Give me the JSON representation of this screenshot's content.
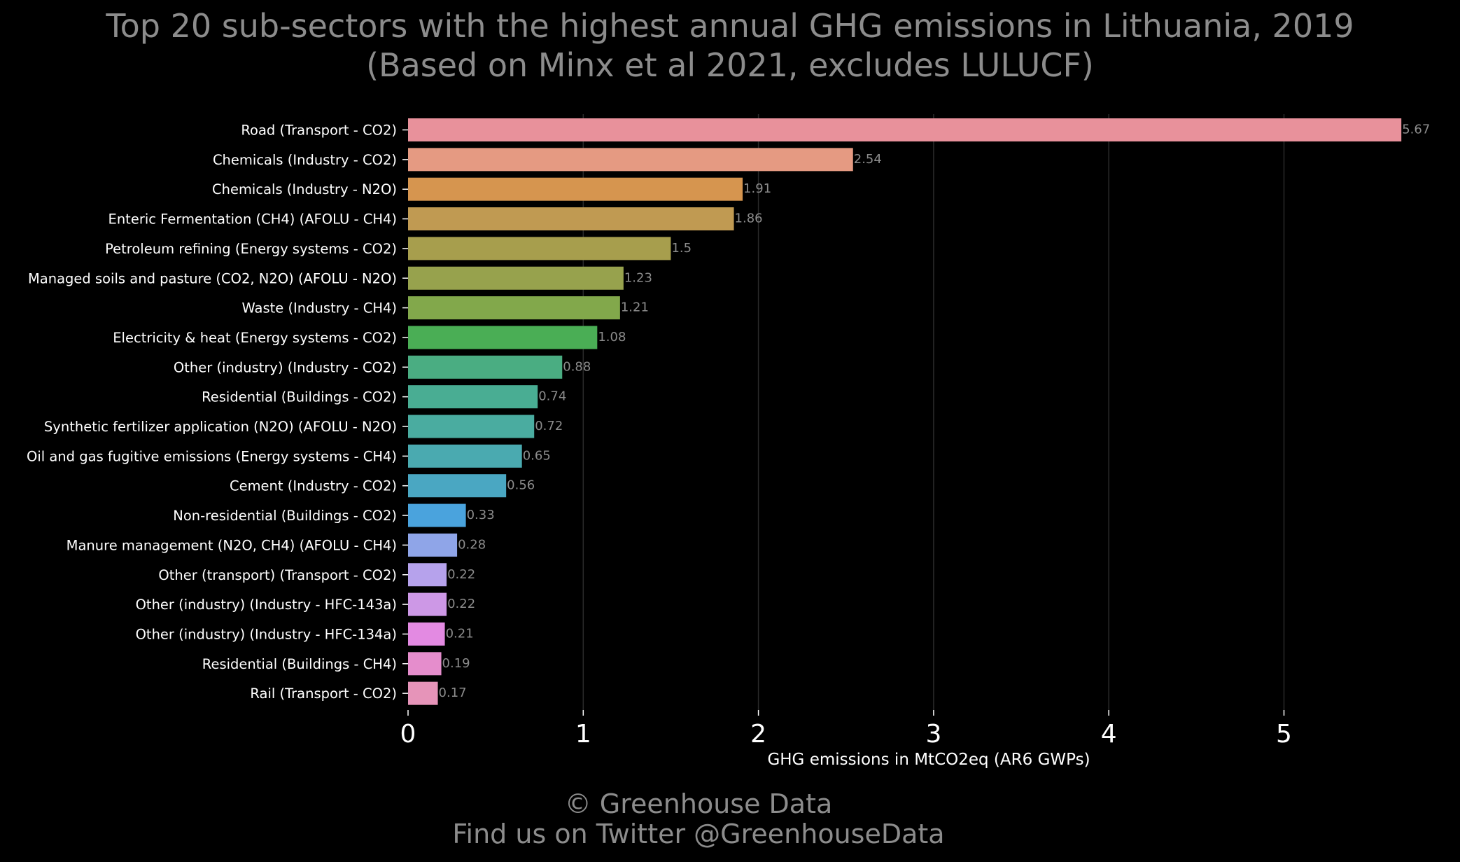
{
  "title_line1": "Top 20 sub-sectors with the highest annual GHG emissions in Lithuania, 2019",
  "title_line2": "(Based on Minx et al 2021, excludes LULUCF)",
  "footer_line1": "© Greenhouse Data",
  "footer_line2": "Find us on Twitter @GreenhouseData",
  "chart_data": {
    "type": "bar",
    "orientation": "horizontal",
    "title": "Top 20 sub-sectors with the highest annual GHG emissions in Lithuania, 2019 (Based on Minx et al 2021, excludes LULUCF)",
    "xlabel": "GHG emissions in MtCO2eq (AR6 GWPs)",
    "ylabel": "",
    "xlim": [
      0,
      5.67
    ],
    "xticks": [
      0,
      1,
      2,
      3,
      4,
      5
    ],
    "grid": "vertical",
    "categories": [
      "Road (Transport - CO2)",
      "Chemicals (Industry - CO2)",
      "Chemicals (Industry - N2O)",
      "Enteric Fermentation (CH4) (AFOLU - CH4)",
      "Petroleum refining (Energy systems - CO2)",
      "Managed soils and pasture (CO2, N2O) (AFOLU - N2O)",
      "Waste (Industry - CH4)",
      "Electricity & heat (Energy systems - CO2)",
      "Other (industry) (Industry - CO2)",
      "Residential (Buildings - CO2)",
      "Synthetic fertilizer application (N2O) (AFOLU - N2O)",
      "Oil and gas fugitive emissions (Energy systems - CH4)",
      "Cement (Industry - CO2)",
      "Non-residential (Buildings - CO2)",
      "Manure management (N2O, CH4) (AFOLU - CH4)",
      "Other (transport) (Transport - CO2)",
      "Other (industry) (Industry - HFC-143a)",
      "Other (industry) (Industry - HFC-134a)",
      "Residential (Buildings - CH4)",
      "Rail  (Transport - CO2)"
    ],
    "values": [
      5.67,
      2.54,
      1.91,
      1.86,
      1.5,
      1.23,
      1.21,
      1.08,
      0.88,
      0.74,
      0.72,
      0.65,
      0.56,
      0.33,
      0.28,
      0.22,
      0.22,
      0.21,
      0.19,
      0.17
    ],
    "value_labels": [
      "5.67",
      "2.54",
      "1.91",
      "1.86",
      "1.5",
      "1.23",
      "1.21",
      "1.08",
      "0.88",
      "0.74",
      "0.72",
      "0.65",
      "0.56",
      "0.33",
      "0.28",
      "0.22",
      "0.22",
      "0.21",
      "0.19",
      "0.17"
    ],
    "colors": [
      "#e8919b",
      "#e59a82",
      "#d6954f",
      "#c09a52",
      "#a79e4d",
      "#97a24d",
      "#82a84b",
      "#4aae55",
      "#4aad82",
      "#49ad93",
      "#4aaca0",
      "#4aaab0",
      "#4aa7c2",
      "#4aa3dd",
      "#8fa5e8",
      "#b6a2ec",
      "#cd98e6",
      "#e38ae2",
      "#e58dcc",
      "#e694b9"
    ]
  }
}
